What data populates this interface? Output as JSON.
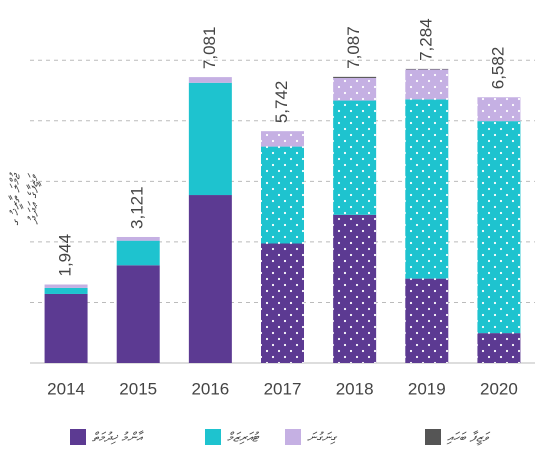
{
  "chart_data": {
    "type": "stacked_bar",
    "y_label": [
      "ޖުމްލަ ތާރީޚު ގ",
      "ވަޒީފާގެ ޢަދަދު"
    ],
    "categories": [
      "2014",
      "2015",
      "2016",
      "2017",
      "2018",
      "2019",
      "2020"
    ],
    "series": [
      {
        "name": "އާންމު ޚިދުމަތް",
        "color": "#5c3a92",
        "values": [
          1710,
          2420,
          4160,
          2960,
          3670,
          2090,
          740
        ]
      },
      {
        "name": "ޓުއަރިޒަމް",
        "color": "#1ec3cf",
        "values": [
          150,
          610,
          2780,
          2400,
          2830,
          4440,
          5250
        ]
      },
      {
        "name": "ގިނަގުނަ",
        "color": "#c5b0e3",
        "values": [
          84,
          91,
          141,
          382,
          560,
          740,
          592
        ]
      },
      {
        "name": "ވަޒީފާ ބަހައި",
        "color": "#555555",
        "values": [
          0,
          0,
          0,
          0,
          27,
          14,
          0
        ]
      }
    ],
    "total_labels": [
      "1,944",
      "3,121",
      "7,081",
      "5,742",
      "7,087",
      "7,284",
      "6,582"
    ],
    "dotted": [
      false,
      false,
      false,
      true,
      true,
      true,
      true
    ],
    "ylim": [
      0,
      8000
    ],
    "yticks": [
      0,
      1500,
      3000,
      4500,
      6000,
      7500
    ],
    "grid": true
  }
}
